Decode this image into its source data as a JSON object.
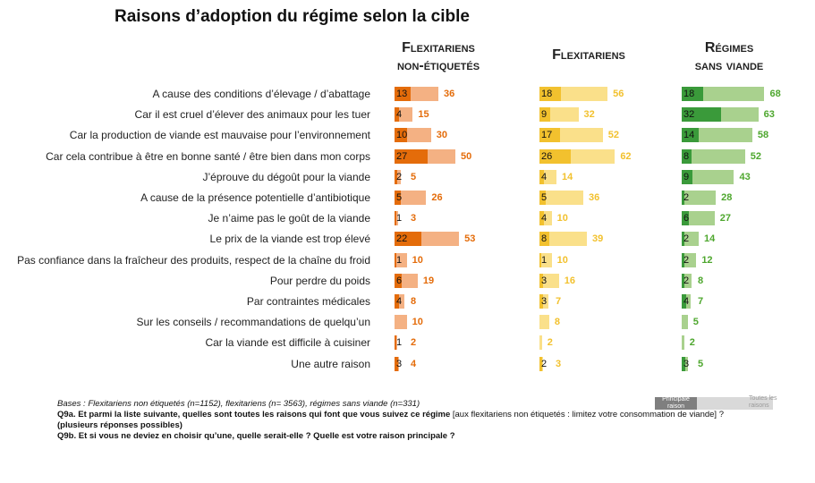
{
  "title": "Raisons d’adoption du régime selon la cible",
  "groups": [
    {
      "line1": "Flexitariens",
      "line2": "non-étiquetés"
    },
    {
      "line1": "Flexitariens",
      "line2": ""
    },
    {
      "line1": "Régimes",
      "line2": "sans viande"
    }
  ],
  "legend": {
    "principale": "Principale raison",
    "toutes": "Toutes les raisons"
  },
  "notes": {
    "bases": "Bases : Flexitariens non étiquetés (n=1152), flexitariens (n= 3563), régimes sans viande (n=331)",
    "q9a_bold": "Q9a. Et parmi la liste suivante, quelles sont toutes les raisons qui font que vous suivez ce régime",
    "q9a_rest": " [aux flexitariens non étiquetés : limitez votre consommation de viande] ?",
    "q9a_bold2": "(plusieurs réponses possibles)",
    "q9b": "Q9b. Et si vous ne deviez en choisir qu’une, quelle serait-elle ? Quelle est votre raison principale ?"
  },
  "colors": {
    "g0": {
      "dark": "#e46c0a",
      "light": "#f4b183",
      "text": "#e46c0a"
    },
    "g1": {
      "dark": "#f2c12e",
      "light": "#fae08a",
      "text": "#f2c12e"
    },
    "g2": {
      "dark": "#3a9a3a",
      "light": "#a9d18e",
      "text": "#4ea72e"
    }
  },
  "chart_data": {
    "type": "bar",
    "title": "Raisons d’adoption du régime selon la cible",
    "categories": [
      "A cause des conditions d’élevage / d’abattage",
      "Car il est cruel d’élever des animaux pour les tuer",
      "Car la production de viande est mauvaise pour l’environnement",
      "Car cela contribue à être en bonne santé / être bien dans mon corps",
      "J’éprouve du dégoût pour la viande",
      "A cause de la présence potentielle d’antibiotique",
      "Je n’aime pas le goût de la viande",
      "Le prix de la viande est trop élevé",
      "Pas confiance dans la fraîcheur des produits, respect de la chaîne du froid",
      "Pour perdre du poids",
      "Par contraintes médicales",
      "Sur les conseils / recommandations de quelqu’un",
      "Car la viande est difficile à cuisiner",
      "Une autre raison"
    ],
    "series": [
      {
        "name": "Flexitariens non-étiquetés",
        "principale": [
          "13",
          "4",
          "10",
          "27",
          "2",
          "5",
          "1",
          "22",
          "1",
          "6",
          "4",
          "",
          "1",
          "3"
        ],
        "toutes": [
          36,
          15,
          30,
          50,
          5,
          26,
          3,
          53,
          10,
          19,
          8,
          10,
          2,
          4
        ]
      },
      {
        "name": "Flexitariens",
        "principale": [
          "18",
          "9",
          "17",
          "26",
          "4",
          "5",
          "4",
          "8",
          "1",
          "3",
          "3",
          "",
          "",
          "2"
        ],
        "toutes": [
          56,
          32,
          52,
          62,
          14,
          36,
          10,
          39,
          10,
          16,
          7,
          8,
          2,
          3
        ]
      },
      {
        "name": "Régimes sans viande",
        "principale": [
          "18",
          "32",
          "14",
          "8",
          "9",
          "2",
          "6",
          "2",
          "2",
          "2",
          "4",
          "",
          "",
          "3"
        ],
        "toutes": [
          68,
          63,
          58,
          52,
          43,
          28,
          27,
          14,
          12,
          8,
          7,
          5,
          2,
          5
        ]
      }
    ]
  }
}
